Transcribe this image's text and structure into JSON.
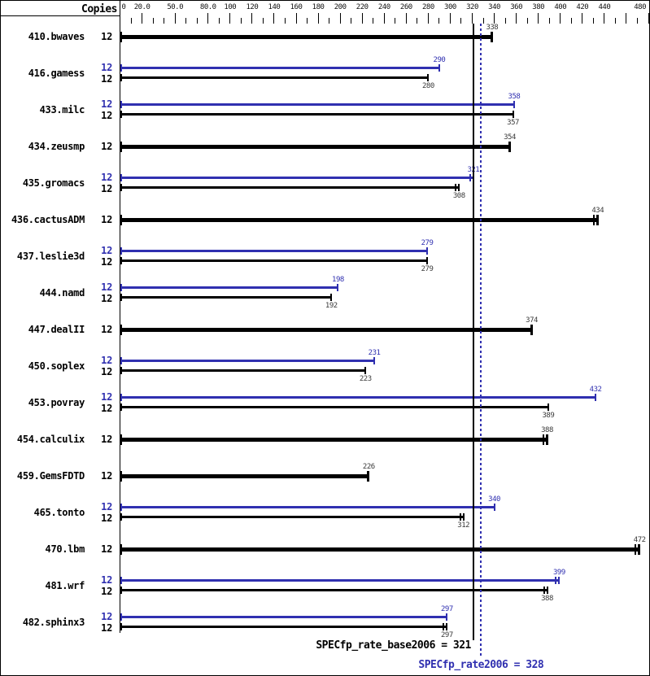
{
  "chart_data": {
    "type": "bar",
    "orientation": "horizontal",
    "copies_header": "Copies",
    "xlim": [
      0,
      480
    ],
    "colors": {
      "peak_blue": "#3030b0",
      "base_black": "#000000",
      "value_text": "#3a3a3a"
    },
    "categories": [
      "410.bwaves",
      "416.gamess",
      "433.milc",
      "434.zeusmp",
      "435.gromacs",
      "436.cactusADM",
      "437.leslie3d",
      "444.namd",
      "447.dealII",
      "450.soplex",
      "453.povray",
      "454.calculix",
      "459.GemsFDTD",
      "465.tonto",
      "470.lbm",
      "481.wrf",
      "482.sphinx3"
    ],
    "copies": [
      12,
      12,
      12,
      12,
      12,
      12,
      12,
      12,
      12,
      12,
      12,
      12,
      12,
      12,
      12,
      12,
      12
    ],
    "series": [
      {
        "name": "peak",
        "color": "#3030b0",
        "values": [
          null,
          290,
          358,
          null,
          321,
          null,
          279,
          198,
          null,
          231,
          432,
          null,
          null,
          340,
          null,
          399,
          297
        ]
      },
      {
        "name": "base",
        "color": "#000000",
        "values": [
          338,
          280,
          357,
          354,
          308,
          434,
          279,
          192,
          374,
          223,
          389,
          388,
          226,
          312,
          472,
          388,
          297
        ]
      }
    ],
    "double_end_ticks": {
      "peak": [
        4,
        15
      ],
      "base": [
        4,
        5,
        11,
        13,
        14,
        15,
        16
      ]
    },
    "x_axis": {
      "major_ticks": [
        20,
        50,
        80,
        100,
        120,
        140,
        160,
        180,
        200,
        220,
        240,
        260,
        280,
        300,
        320,
        340,
        360,
        380,
        400,
        420,
        440,
        460,
        480
      ],
      "minor_ticks": [
        10,
        30,
        40,
        60,
        70,
        90,
        110,
        130,
        150,
        170,
        190,
        210,
        230,
        250,
        270,
        290,
        310,
        330,
        350,
        370,
        390,
        410,
        430,
        450,
        470
      ],
      "tick_labels": [
        {
          "value": 0,
          "text": "0"
        },
        {
          "value": 20,
          "text": "20.0"
        },
        {
          "value": 50,
          "text": "50.0"
        },
        {
          "value": 80,
          "text": "80.0"
        },
        {
          "value": 100,
          "text": "100"
        },
        {
          "value": 120,
          "text": "120"
        },
        {
          "value": 140,
          "text": "140"
        },
        {
          "value": 160,
          "text": "160"
        },
        {
          "value": 180,
          "text": "180"
        },
        {
          "value": 200,
          "text": "200"
        },
        {
          "value": 220,
          "text": "220"
        },
        {
          "value": 240,
          "text": "240"
        },
        {
          "value": 260,
          "text": "260"
        },
        {
          "value": 280,
          "text": "280"
        },
        {
          "value": 300,
          "text": "300"
        },
        {
          "value": 320,
          "text": "320"
        },
        {
          "value": 340,
          "text": "340"
        },
        {
          "value": 360,
          "text": "360"
        },
        {
          "value": 380,
          "text": "380"
        },
        {
          "value": 400,
          "text": "400"
        },
        {
          "value": 420,
          "text": "420"
        },
        {
          "value": 440,
          "text": "440"
        },
        {
          "value": 480,
          "text": "480"
        }
      ]
    },
    "reference_lines": [
      {
        "name": "base_mean",
        "value": 321,
        "style": "solid",
        "color": "#000000",
        "text": "SPECfp_rate_base2006 = 321"
      },
      {
        "name": "peak_mean",
        "value": 328,
        "style": "dotted",
        "color": "#3030b0",
        "text": "SPECfp_rate2006 = 328"
      }
    ]
  }
}
